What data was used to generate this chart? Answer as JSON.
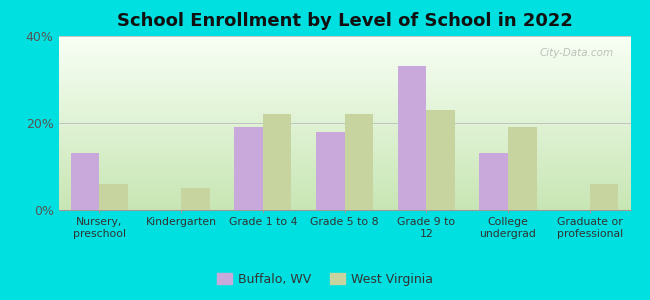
{
  "title": "School Enrollment by Level of School in 2022",
  "categories": [
    "Nursery,\npreschool",
    "Kindergarten",
    "Grade 1 to 4",
    "Grade 5 to 8",
    "Grade 9 to\n12",
    "College\nundergrad",
    "Graduate or\nprofessional"
  ],
  "buffalo_values": [
    13,
    0,
    19,
    18,
    33,
    13,
    0
  ],
  "wv_values": [
    6,
    5,
    22,
    22,
    23,
    19,
    6
  ],
  "buffalo_color": "#c9a8dc",
  "wv_color": "#c8d4a0",
  "bg_color": "#00e0e0",
  "ylim": [
    0,
    40
  ],
  "yticks": [
    0,
    20,
    40
  ],
  "ytick_labels": [
    "0%",
    "20%",
    "40%"
  ],
  "legend_labels": [
    "Buffalo, WV",
    "West Virginia"
  ],
  "title_fontsize": 13,
  "watermark": "City-Data.com",
  "grad_top": "#f0faea",
  "grad_bottom": "#c8e8b0"
}
